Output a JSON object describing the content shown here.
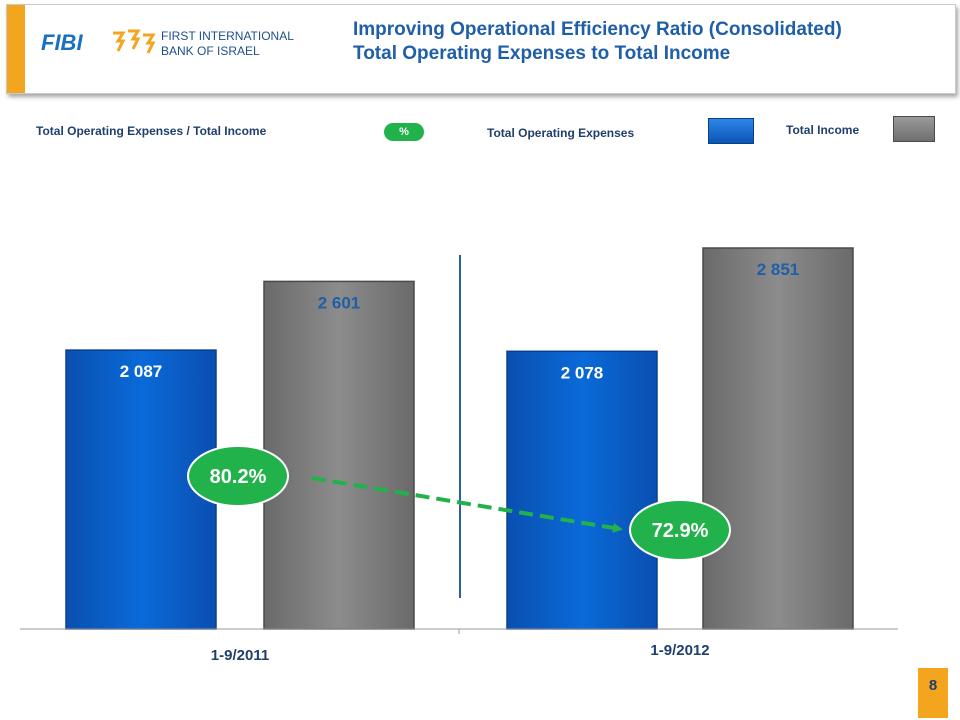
{
  "header": {
    "logo": "FIBI",
    "bank_name_line1": "FIRST INTERNATIONAL",
    "bank_name_line2": "BANK OF ISRAEL",
    "title_line1": "Improving Operational Efficiency Ratio (Consolidated)",
    "title_line2": "Total Operating Expenses to Total Income"
  },
  "legend": {
    "ratio_label": "Total Operating Expenses / Total Income",
    "ratio_badge": "%",
    "expenses_label": "Total Operating Expenses",
    "income_label": "Total Income"
  },
  "colors": {
    "expenses": "#0a63d1",
    "income": "#858585",
    "ratio": "#22b24c",
    "accent": "#f3a51e",
    "title": "#1f5fa8"
  },
  "chart_data": {
    "type": "bar",
    "categories": [
      "1-9/2011",
      "1-9/2012"
    ],
    "series": [
      {
        "name": "Total Operating Expenses",
        "values": [
          2087,
          2078
        ],
        "labels": [
          "2 087",
          "2 078"
        ]
      },
      {
        "name": "Total Income",
        "values": [
          2601,
          2851
        ],
        "labels": [
          "2 601",
          "2 851"
        ]
      }
    ],
    "ratio": {
      "name": "Total Operating Expenses / Total Income",
      "values": [
        80.2,
        72.9
      ],
      "labels": [
        "80.2%",
        "72.9%"
      ]
    },
    "ylim": [
      0,
      2851
    ],
    "grid": false,
    "legend_position": "top"
  },
  "page_number": "8"
}
